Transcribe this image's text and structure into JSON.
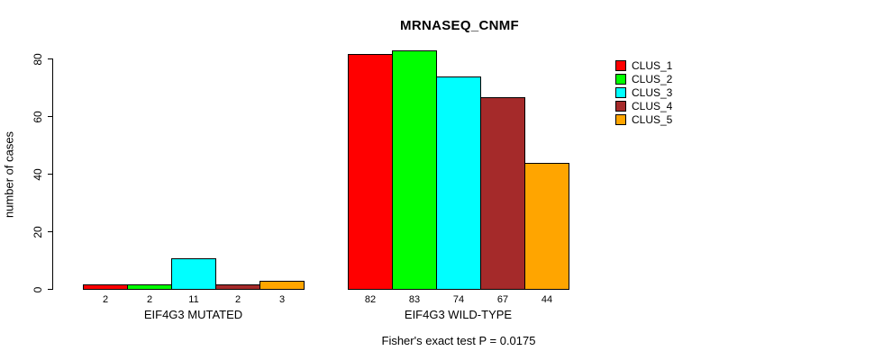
{
  "title": "MRNASEQ_CNMF",
  "chart_data": {
    "type": "bar",
    "title": "MRNASEQ_CNMF",
    "xlabel": "",
    "ylabel": "number of cases",
    "ylim": [
      0,
      80
    ],
    "yticks": [
      0,
      20,
      40,
      60,
      80
    ],
    "grid": false,
    "legend_position": "right",
    "categories": [
      "EIF4G3 MUTATED",
      "EIF4G3 WILD-TYPE"
    ],
    "series": [
      {
        "name": "CLUS_1",
        "color": "#ff0000",
        "values": [
          2,
          82
        ]
      },
      {
        "name": "CLUS_2",
        "color": "#00ff00",
        "values": [
          2,
          83
        ]
      },
      {
        "name": "CLUS_3",
        "color": "#00ffff",
        "values": [
          11,
          74
        ]
      },
      {
        "name": "CLUS_4",
        "color": "#a52a2a",
        "values": [
          2,
          67
        ]
      },
      {
        "name": "CLUS_5",
        "color": "#ffa500",
        "values": [
          3,
          44
        ]
      }
    ],
    "bar_value_labels_shown": true,
    "annotation": "Fisher's exact test P = 0.0175"
  },
  "legend": {
    "items": [
      {
        "label": "CLUS_1",
        "color": "#ff0000"
      },
      {
        "label": "CLUS_2",
        "color": "#00ff00"
      },
      {
        "label": "CLUS_3",
        "color": "#00ffff"
      },
      {
        "label": "CLUS_4",
        "color": "#a52a2a"
      },
      {
        "label": "CLUS_5",
        "color": "#ffa500"
      }
    ]
  },
  "footer": {
    "text": "Fisher's exact test P = 0.0175"
  },
  "colors": {
    "background": "#ffffff",
    "axis": "#000000",
    "text": "#000000",
    "bar_border": "#000000"
  }
}
